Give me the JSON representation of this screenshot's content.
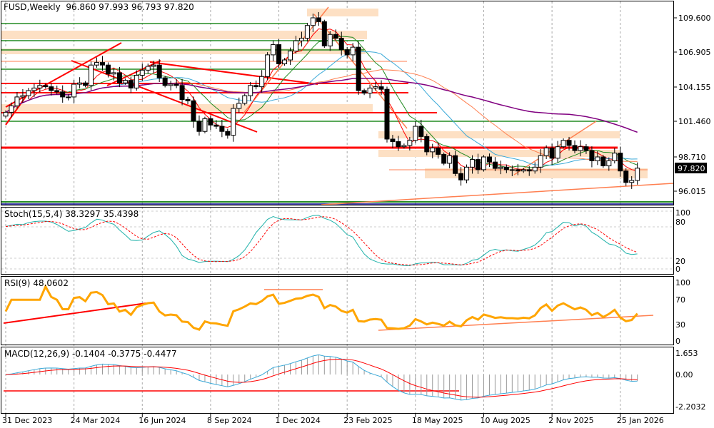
{
  "header": {
    "symbol": "FUSD,Weekly",
    "open": "96.860",
    "high": "97.993",
    "low": "96.793",
    "close": "97.820"
  },
  "indicators": {
    "stoch": {
      "label": "Stoch(15,5,4)",
      "main": "38.3297",
      "signal": "35.4398",
      "ticks": [
        "100",
        "80",
        "20",
        "0"
      ]
    },
    "rsi": {
      "label": "RSI(9)",
      "value": "48.0602",
      "ticks": [
        "100",
        "70",
        "30",
        "0"
      ]
    },
    "macd": {
      "label": "MACD(12,26,9)",
      "macd": "-0.1404",
      "signal": "-0.3775",
      "hist": "-0.4477",
      "ticks": [
        "1.653",
        "0.00",
        "-2.2032"
      ]
    }
  },
  "colors": {
    "bull": "#ffffff",
    "bear": "#000000",
    "stoch_main": "#20b2aa",
    "stoch_signal": "#ff0000",
    "rsi": "#ffa500",
    "trend": "#ff0000",
    "zone": "#fde0c4"
  },
  "chart_data": {
    "type": "candlestick",
    "title": "FUSD,Weekly",
    "price_ticks": [
      "109.600",
      "106.905",
      "104.155",
      "101.460",
      "98.710",
      "96.015"
    ],
    "current_price": "97.820",
    "ylim": [
      95.5,
      110.3
    ],
    "x_labels": [
      "31 Dec 2023",
      "24 Mar 2024",
      "16 Jun 2024",
      "8 Sep 2024",
      "1 Dec 2024",
      "23 Feb 2025",
      "18 May 2025",
      "10 Aug 2025",
      "2 Nov 2025",
      "25 Jan 2026"
    ],
    "closes": [
      102.2,
      102.7,
      103.4,
      103.5,
      103.9,
      104.1,
      104.3,
      104.2,
      103.9,
      103.8,
      103.4,
      103.4,
      104.4,
      104.5,
      104.3,
      105.9,
      106.1,
      105.9,
      105.2,
      105.3,
      104.5,
      104.7,
      104.1,
      105.1,
      105.5,
      105.8,
      105.9,
      104.9,
      104.3,
      104.4,
      104.3,
      103.2,
      103.1,
      101.5,
      100.7,
      101.7,
      101.2,
      101.1,
      100.7,
      100.4,
      102.5,
      102.9,
      103.5,
      104.3,
      104.2,
      105.0,
      106.7,
      107.5,
      106.0,
      106.3,
      107.0,
      107.8,
      108.0,
      109.0,
      109.6,
      109.3,
      107.4,
      108.3,
      108.0,
      107.1,
      106.7,
      107.3,
      103.9,
      103.7,
      104.1,
      104.2,
      104.0,
      100.1,
      99.9,
      99.5,
      99.6,
      100.0,
      101.1,
      100.3,
      99.1,
      99.4,
      98.9,
      98.2,
      98.8,
      97.4,
      96.9,
      97.9,
      98.5,
      97.7,
      98.7,
      98.3,
      97.8,
      97.9,
      97.7,
      97.7,
      97.6,
      97.7,
      97.6,
      97.9,
      98.8,
      99.4,
      98.6,
      99.5,
      100.0,
      99.6,
      99.2,
      99.5,
      99.2,
      98.4,
      98.7,
      98.0,
      98.4,
      99.0,
      97.6,
      96.7,
      96.86,
      97.82
    ]
  }
}
